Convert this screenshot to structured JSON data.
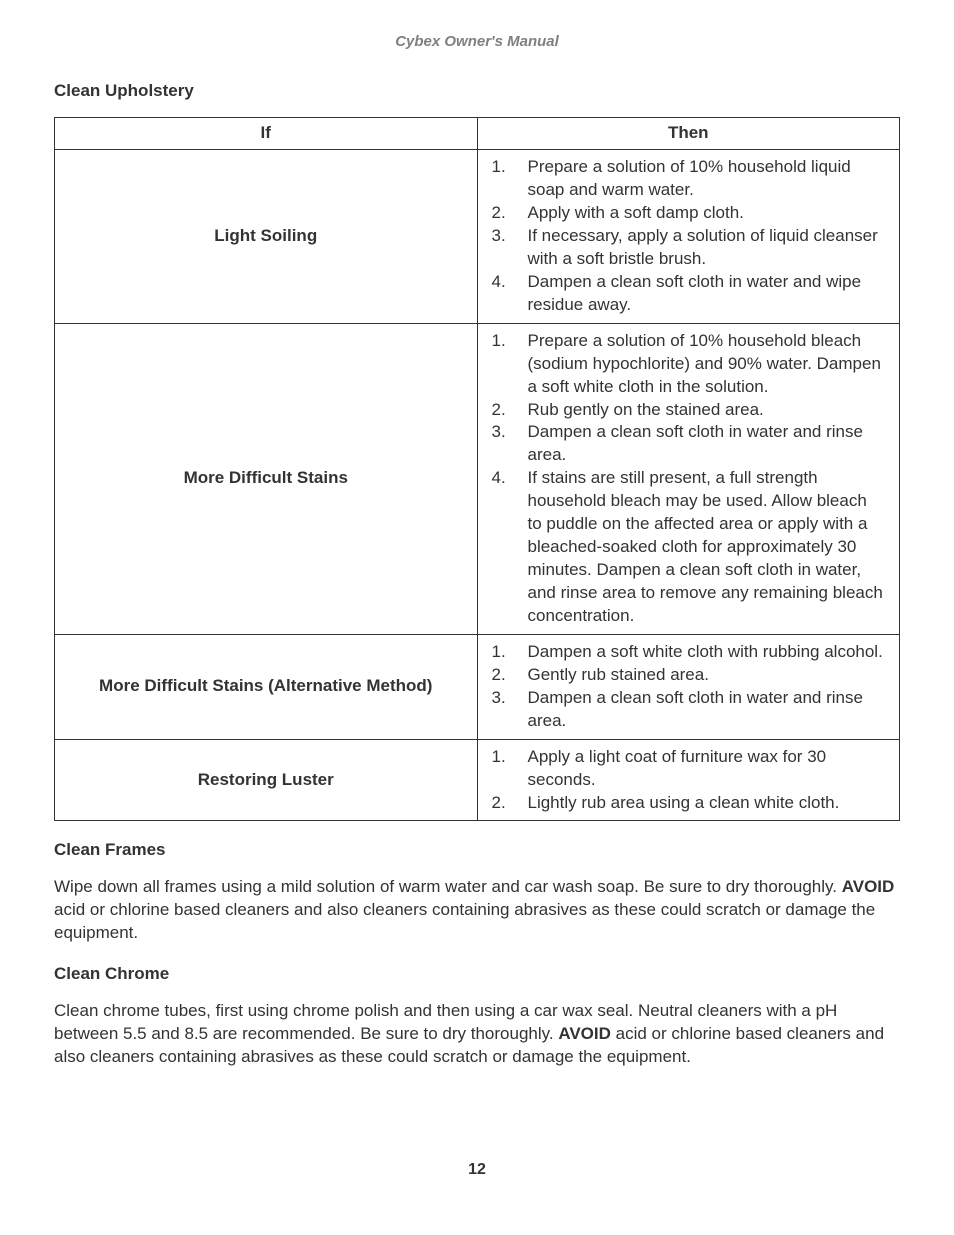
{
  "header": "Cybex Owner's Manual",
  "section1": "Clean Upholstery",
  "table": {
    "col_if": "If",
    "col_then": "Then",
    "rows": [
      {
        "if": "Light Soiling",
        "steps": [
          "Prepare a solution of 10% household liquid soap and warm water.",
          "Apply with a soft damp cloth.",
          "If necessary, apply a solution of liquid cleanser with a soft bristle brush.",
          "Dampen a clean soft cloth in water and wipe residue away."
        ]
      },
      {
        "if": "More Difficult Stains",
        "steps": [
          "Prepare a solution of 10% household bleach (sodium hypochlorite) and 90% water. Dampen a soft white cloth in the solution.",
          "Rub gently on the stained area.",
          "Dampen a clean soft cloth in water and rinse area.",
          "If stains are still present, a full strength household bleach may be used. Allow bleach to puddle on the affected area or apply with a bleached-soaked cloth for approximately 30 minutes. Dampen a clean soft cloth in water, and rinse area to remove any remaining bleach concentration."
        ]
      },
      {
        "if": "More Difficult Stains (Alternative Method)",
        "steps": [
          "Dampen a soft white cloth with rubbing alcohol.",
          "Gently rub stained area.",
          "Dampen a clean soft cloth in water and rinse area."
        ]
      },
      {
        "if": "Restoring Luster",
        "steps": [
          "Apply a light coat of furniture wax for 30 seconds.",
          "Lightly rub area using a clean white cloth."
        ]
      }
    ]
  },
  "section2": "Clean Frames",
  "frames_p1": "Wipe down all frames using a mild solution of warm water and car wash soap. Be sure to dry thoroughly. ",
  "frames_avoid": "AVOID",
  "frames_p2": " acid or chlorine based cleaners and also cleaners containing abrasives as these could scratch or damage the equipment.",
  "section3": "Clean Chrome",
  "chrome_p1": "Clean chrome tubes, first using chrome polish and then using a car wax seal. Neutral cleaners with a pH between 5.5 and 8.5 are recommended. Be sure to dry thoroughly. ",
  "chrome_avoid": "AVOID",
  "chrome_p2": " acid or chlorine based cleaners and also cleaners containing abrasives as these could scratch or damage the equipment.",
  "page_number": "12"
}
